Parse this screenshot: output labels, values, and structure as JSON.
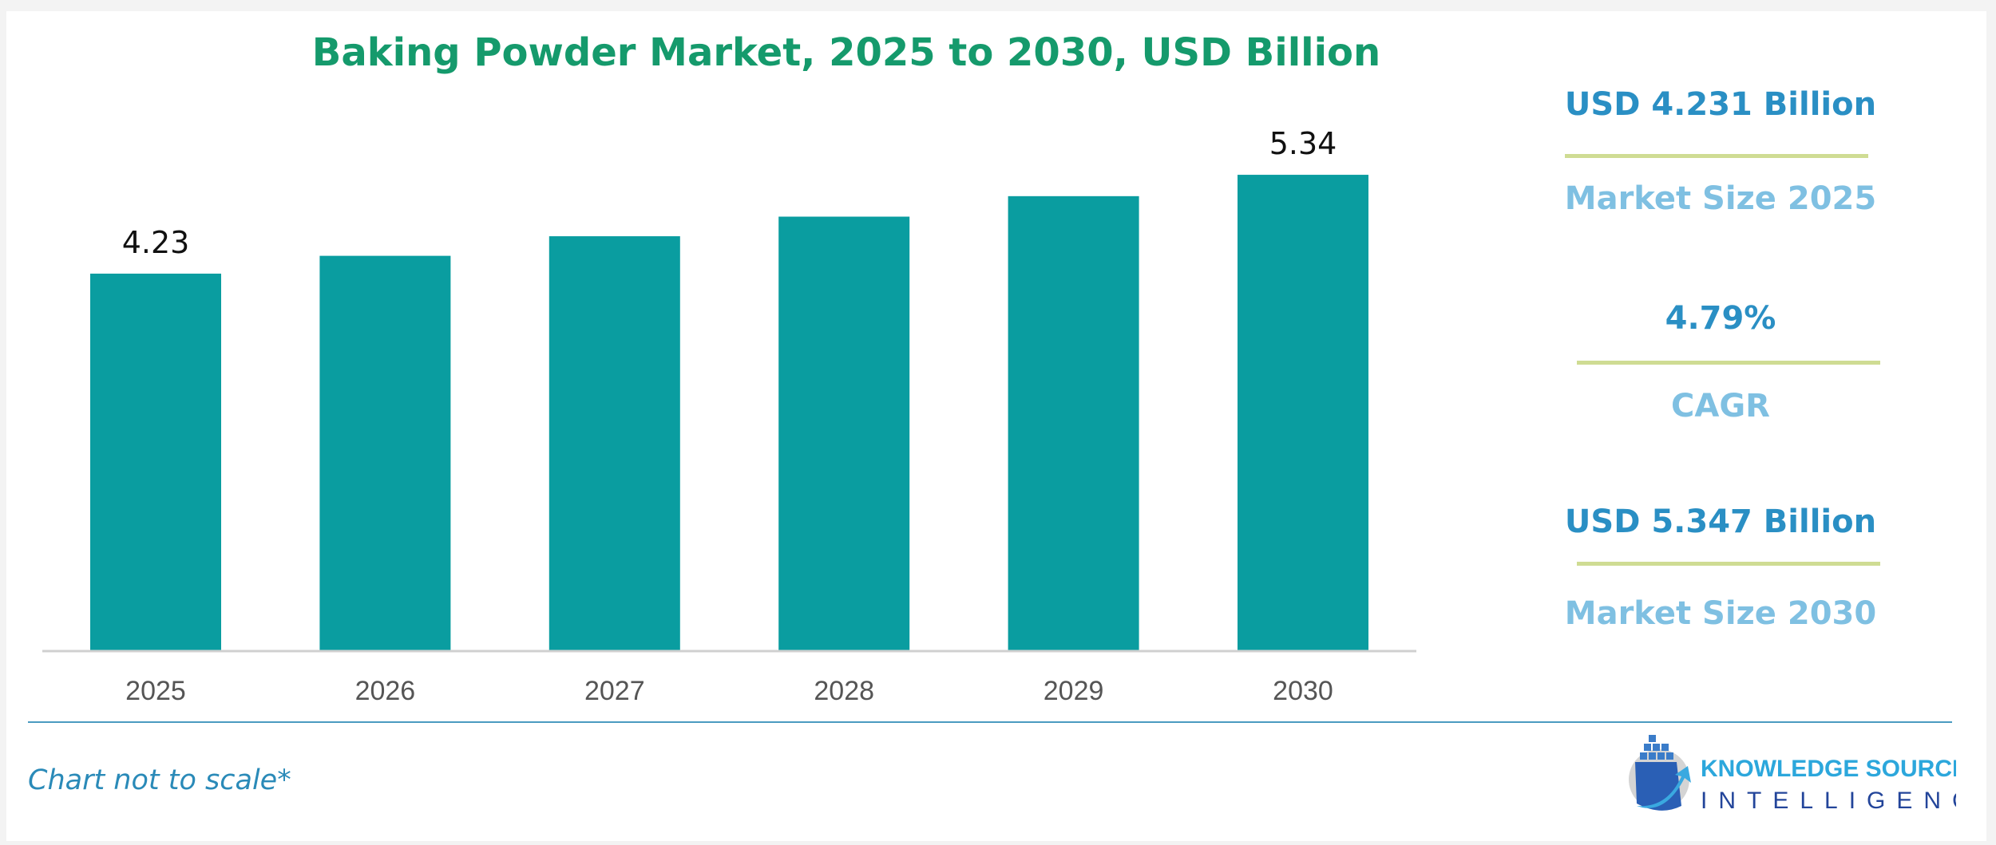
{
  "chart_data": {
    "type": "bar",
    "title": "Baking Powder Market, 2025 to 2030, USD Billion",
    "categories": [
      "2025",
      "2026",
      "2027",
      "2028",
      "2029",
      "2030"
    ],
    "values": [
      4.23,
      4.43,
      4.65,
      4.87,
      5.1,
      5.34
    ],
    "data_labels": {
      "2025": "4.23",
      "2030": "5.34"
    },
    "bar_color": "#0a9da0",
    "grid": false,
    "legend": "none"
  },
  "kpis": [
    {
      "value": "USD 4.231 Billion",
      "label": "Market Size 2025"
    },
    {
      "value": "4.79%",
      "label": "CAGR"
    },
    {
      "value": "USD 5.347 Billion",
      "label": "Market Size 2030"
    }
  ],
  "note": "Chart not to scale*",
  "logo": {
    "line1": "KNOWLEDGE SOURCING",
    "line2": "INTELLIGENCE"
  },
  "colors": {
    "title": "#159a6c",
    "kpi_value": "#2a8fc4",
    "kpi_label": "#7fc0e2",
    "kpi_rule": "#cfdc93"
  }
}
